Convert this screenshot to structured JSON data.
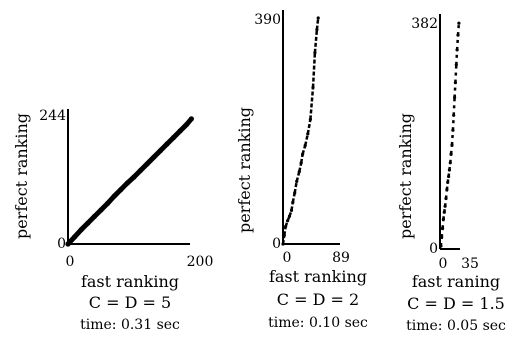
{
  "chart_data": [
    {
      "type": "scatter",
      "title": "",
      "xlabel": "fast ranking",
      "ylabel": "perfect ranking",
      "xlim": [
        0,
        200
      ],
      "ylim": [
        0,
        244
      ],
      "xticks": [
        "0",
        "200"
      ],
      "yticks": [
        "0",
        "244"
      ],
      "caption": "C = D = 5",
      "time": "time: 0.31 sec",
      "series": [
        {
          "x": [
            0,
            10,
            20,
            30,
            40,
            50,
            60,
            70,
            80,
            90,
            100,
            110,
            120,
            130,
            140,
            150,
            160,
            170,
            180,
            187
          ],
          "y": [
            0,
            13,
            26,
            38,
            50,
            62,
            74,
            87,
            99,
            111,
            122,
            134,
            146,
            158,
            170,
            182,
            194,
            206,
            218,
            228
          ]
        }
      ]
    },
    {
      "type": "scatter",
      "title": "",
      "xlabel": "fast ranking",
      "ylabel": "perfect ranking",
      "xlim": [
        0,
        89
      ],
      "ylim": [
        0,
        390
      ],
      "xticks": [
        "0",
        "89"
      ],
      "yticks": [
        "0",
        "390"
      ],
      "caption": "C = D = 2",
      "time": "time: 0.10 sec",
      "series": [
        {
          "x": [
            0,
            2,
            4,
            7,
            10,
            13,
            15,
            18,
            21,
            25,
            28,
            30,
            34,
            38,
            42,
            46,
            49,
            52,
            54
          ],
          "y": [
            0,
            15,
            30,
            40,
            48,
            58,
            72,
            88,
            108,
            125,
            140,
            155,
            170,
            190,
            215,
            270,
            330,
            370,
            390
          ]
        }
      ]
    },
    {
      "type": "scatter",
      "title": "",
      "xlabel": "fast raning",
      "ylabel": "perfect ranking",
      "xlim": [
        0,
        35
      ],
      "ylim": [
        0,
        382
      ],
      "xticks": [
        "0",
        "35"
      ],
      "yticks": [
        "0",
        "382"
      ],
      "caption": "C = D = 1.5",
      "time": "time: 0.05 sec",
      "series": [
        {
          "x": [
            1,
            2,
            3,
            4,
            5,
            6,
            7,
            8,
            9,
            10,
            11,
            12,
            13,
            14,
            15,
            16,
            17,
            18,
            19,
            20,
            21,
            22
          ],
          "y": [
            5,
            20,
            35,
            50,
            62,
            72,
            85,
            100,
            112,
            122,
            133,
            145,
            160,
            175,
            200,
            225,
            255,
            280,
            310,
            335,
            360,
            380
          ]
        }
      ]
    }
  ]
}
